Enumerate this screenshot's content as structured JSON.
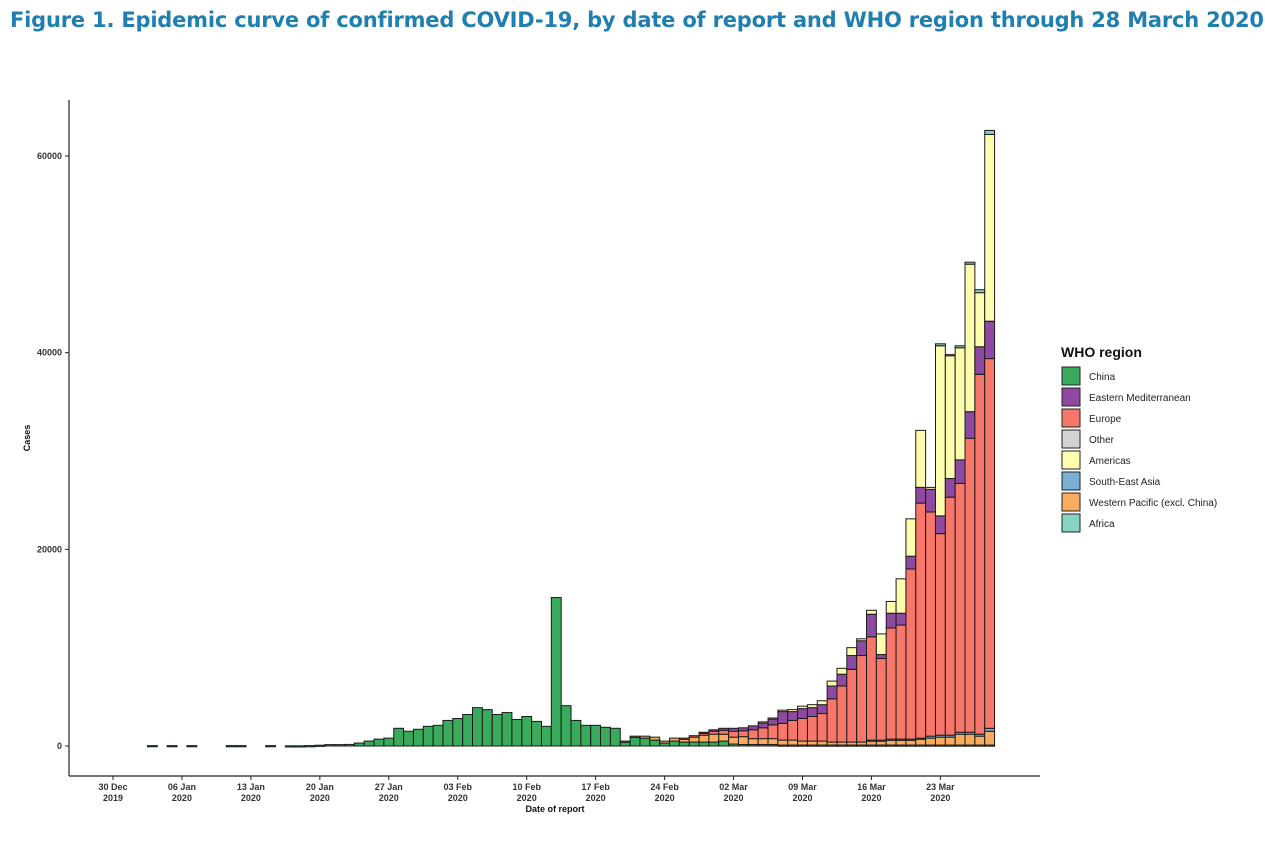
{
  "title": "Figure 1. Epidemic curve of confirmed COVID-19, by date of report and WHO region through 28 March 2020",
  "chart_data": {
    "type": "bar",
    "stacked": true,
    "xlabel": "Date of report",
    "ylabel": "Cases",
    "ylim": [
      0,
      63000
    ],
    "y_ticks": [
      0,
      20000,
      40000,
      60000
    ],
    "y_tick_labels": [
      "0",
      "20000",
      "40000",
      "60000"
    ],
    "grid": false,
    "x_ticks": [
      {
        "date": "2019-12-30",
        "line1": "30 Dec",
        "line2": "2019"
      },
      {
        "date": "2020-01-06",
        "line1": "06 Jan",
        "line2": "2020"
      },
      {
        "date": "2020-01-13",
        "line1": "13 Jan",
        "line2": "2020"
      },
      {
        "date": "2020-01-20",
        "line1": "20 Jan",
        "line2": "2020"
      },
      {
        "date": "2020-01-27",
        "line1": "27 Jan",
        "line2": "2020"
      },
      {
        "date": "2020-02-03",
        "line1": "03 Feb",
        "line2": "2020"
      },
      {
        "date": "2020-02-10",
        "line1": "10 Feb",
        "line2": "2020"
      },
      {
        "date": "2020-02-17",
        "line1": "17 Feb",
        "line2": "2020"
      },
      {
        "date": "2020-02-24",
        "line1": "24 Feb",
        "line2": "2020"
      },
      {
        "date": "2020-03-02",
        "line1": "02 Mar",
        "line2": "2020"
      },
      {
        "date": "2020-03-09",
        "line1": "09 Mar",
        "line2": "2020"
      },
      {
        "date": "2020-03-16",
        "line1": "16 Mar",
        "line2": "2020"
      },
      {
        "date": "2020-03-23",
        "line1": "23 Mar",
        "line2": "2020"
      }
    ],
    "legend": {
      "title": "WHO region",
      "placement": "right"
    },
    "series": [
      {
        "name": "China",
        "color": "#3aaa5c"
      },
      {
        "name": "Eastern Mediterranean",
        "color": "#8e4aa0"
      },
      {
        "name": "Europe",
        "color": "#f7776b"
      },
      {
        "name": "Other",
        "color": "#d3d3d3"
      },
      {
        "name": "Americas",
        "color": "#fdfdb0"
      },
      {
        "name": "South-East Asia",
        "color": "#7bafd4"
      },
      {
        "name": "Western Pacific (excl. China)",
        "color": "#f9ac60"
      },
      {
        "name": "Africa",
        "color": "#87d4c4"
      }
    ],
    "stack_order": [
      "China",
      "Western Pacific (excl. China)",
      "South-East Asia",
      "Europe",
      "Eastern Mediterranean",
      "Americas",
      "Other",
      "Africa"
    ],
    "bars": [
      {
        "date": "2020-01-03",
        "values": {
          "China": 40
        }
      },
      {
        "date": "2020-01-05",
        "values": {
          "China": 40
        }
      },
      {
        "date": "2020-01-07",
        "values": {
          "China": 40
        }
      },
      {
        "date": "2020-01-11",
        "values": {
          "China": 40
        }
      },
      {
        "date": "2020-01-12",
        "values": {
          "China": 40
        }
      },
      {
        "date": "2020-01-15",
        "values": {
          "China": 40
        }
      },
      {
        "date": "2020-01-17",
        "values": {
          "China": 20
        }
      },
      {
        "date": "2020-01-18",
        "values": {
          "China": 20
        }
      },
      {
        "date": "2020-01-19",
        "values": {
          "China": 40
        }
      },
      {
        "date": "2020-01-20",
        "values": {
          "China": 80
        }
      },
      {
        "date": "2020-01-21",
        "values": {
          "China": 140
        }
      },
      {
        "date": "2020-01-22",
        "values": {
          "China": 140
        }
      },
      {
        "date": "2020-01-23",
        "values": {
          "China": 160
        }
      },
      {
        "date": "2020-01-24",
        "values": {
          "China": 300
        }
      },
      {
        "date": "2020-01-25",
        "values": {
          "China": 500
        }
      },
      {
        "date": "2020-01-26",
        "values": {
          "China": 700
        }
      },
      {
        "date": "2020-01-27",
        "values": {
          "China": 800
        }
      },
      {
        "date": "2020-01-28",
        "values": {
          "China": 1800
        }
      },
      {
        "date": "2020-01-29",
        "values": {
          "China": 1500
        }
      },
      {
        "date": "2020-01-30",
        "values": {
          "China": 1700
        }
      },
      {
        "date": "2020-01-31",
        "values": {
          "China": 2000
        }
      },
      {
        "date": "2020-02-01",
        "values": {
          "China": 2100
        }
      },
      {
        "date": "2020-02-02",
        "values": {
          "China": 2600
        }
      },
      {
        "date": "2020-02-03",
        "values": {
          "China": 2800
        }
      },
      {
        "date": "2020-02-04",
        "values": {
          "China": 3200
        }
      },
      {
        "date": "2020-02-05",
        "values": {
          "China": 3900
        }
      },
      {
        "date": "2020-02-06",
        "values": {
          "China": 3700
        }
      },
      {
        "date": "2020-02-07",
        "values": {
          "China": 3200
        }
      },
      {
        "date": "2020-02-08",
        "values": {
          "China": 3400
        }
      },
      {
        "date": "2020-02-09",
        "values": {
          "China": 2700
        }
      },
      {
        "date": "2020-02-10",
        "values": {
          "China": 3000
        }
      },
      {
        "date": "2020-02-11",
        "values": {
          "China": 2500
        }
      },
      {
        "date": "2020-02-12",
        "values": {
          "China": 2000
        }
      },
      {
        "date": "2020-02-13",
        "values": {
          "China": 15100
        }
      },
      {
        "date": "2020-02-14",
        "values": {
          "China": 4100
        }
      },
      {
        "date": "2020-02-15",
        "values": {
          "China": 2600
        }
      },
      {
        "date": "2020-02-16",
        "values": {
          "China": 2100
        }
      },
      {
        "date": "2020-02-17",
        "values": {
          "China": 2100
        }
      },
      {
        "date": "2020-02-18",
        "values": {
          "China": 1900
        }
      },
      {
        "date": "2020-02-19",
        "values": {
          "China": 1800
        }
      },
      {
        "date": "2020-02-20",
        "values": {
          "China": 400,
          "Western Pacific (excl. China)": 100
        }
      },
      {
        "date": "2020-02-21",
        "values": {
          "China": 900,
          "Western Pacific (excl. China)": 100
        }
      },
      {
        "date": "2020-02-22",
        "values": {
          "China": 800,
          "Western Pacific (excl. China)": 200
        }
      },
      {
        "date": "2020-02-23",
        "values": {
          "China": 600,
          "Western Pacific (excl. China)": 300
        }
      },
      {
        "date": "2020-02-24",
        "values": {
          "China": 300,
          "Western Pacific (excl. China)": 200
        }
      },
      {
        "date": "2020-02-25",
        "values": {
          "China": 500,
          "Western Pacific (excl. China)": 300
        }
      },
      {
        "date": "2020-02-26",
        "values": {
          "China": 400,
          "Western Pacific (excl. China)": 300,
          "Europe": 100
        }
      },
      {
        "date": "2020-02-27",
        "values": {
          "China": 400,
          "Western Pacific (excl. China)": 500,
          "Europe": 150
        }
      },
      {
        "date": "2020-02-28",
        "values": {
          "China": 400,
          "Western Pacific (excl. China)": 700,
          "Europe": 200,
          "Eastern Mediterranean": 100
        }
      },
      {
        "date": "2020-02-29",
        "values": {
          "China": 400,
          "Western Pacific (excl. China)": 800,
          "Europe": 300,
          "Eastern Mediterranean": 150
        }
      },
      {
        "date": "2020-03-01",
        "values": {
          "China": 500,
          "Western Pacific (excl. China)": 700,
          "Europe": 400,
          "Eastern Mediterranean": 200
        }
      },
      {
        "date": "2020-03-02",
        "values": {
          "China": 200,
          "Western Pacific (excl. China)": 700,
          "Europe": 600,
          "Eastern Mediterranean": 300
        }
      },
      {
        "date": "2020-03-03",
        "values": {
          "China": 150,
          "Western Pacific (excl. China)": 800,
          "Europe": 600,
          "Eastern Mediterranean": 300
        }
      },
      {
        "date": "2020-03-04",
        "values": {
          "China": 150,
          "Western Pacific (excl. China)": 600,
          "Europe": 900,
          "Eastern Mediterranean": 400
        }
      },
      {
        "date": "2020-03-05",
        "values": {
          "China": 150,
          "Western Pacific (excl. China)": 600,
          "Europe": 1100,
          "Eastern Mediterranean": 500,
          "Americas": 100
        }
      },
      {
        "date": "2020-03-06",
        "values": {
          "China": 150,
          "Western Pacific (excl. China)": 600,
          "Europe": 1400,
          "Eastern Mediterranean": 600,
          "Americas": 100
        }
      },
      {
        "date": "2020-03-07",
        "values": {
          "China": 100,
          "Western Pacific (excl. China)": 500,
          "Europe": 1700,
          "Eastern Mediterranean": 1200,
          "Americas": 150
        }
      },
      {
        "date": "2020-03-08",
        "values": {
          "China": 100,
          "Western Pacific (excl. China)": 500,
          "Europe": 2000,
          "Eastern Mediterranean": 900,
          "Americas": 200
        }
      },
      {
        "date": "2020-03-09",
        "values": {
          "China": 100,
          "Western Pacific (excl. China)": 400,
          "Europe": 2300,
          "Eastern Mediterranean": 1000,
          "Americas": 250
        }
      },
      {
        "date": "2020-03-10",
        "values": {
          "China": 100,
          "Western Pacific (excl. China)": 400,
          "Europe": 2500,
          "Eastern Mediterranean": 900,
          "Americas": 300
        }
      },
      {
        "date": "2020-03-11",
        "values": {
          "China": 100,
          "Western Pacific (excl. China)": 400,
          "Europe": 2800,
          "Eastern Mediterranean": 900,
          "Americas": 400
        }
      },
      {
        "date": "2020-03-12",
        "values": {
          "China": 100,
          "Western Pacific (excl. China)": 300,
          "Europe": 4400,
          "Eastern Mediterranean": 1300,
          "Americas": 500
        }
      },
      {
        "date": "2020-03-13",
        "values": {
          "China": 100,
          "Western Pacific (excl. China)": 300,
          "Europe": 5700,
          "Eastern Mediterranean": 1200,
          "Americas": 600
        }
      },
      {
        "date": "2020-03-14",
        "values": {
          "China": 100,
          "Western Pacific (excl. China)": 300,
          "Europe": 7400,
          "Eastern Mediterranean": 1400,
          "Americas": 800
        }
      },
      {
        "date": "2020-03-15",
        "values": {
          "China": 100,
          "Western Pacific (excl. China)": 300,
          "Europe": 8800,
          "Eastern Mediterranean": 1500,
          "Americas": 200
        }
      },
      {
        "date": "2020-03-16",
        "values": {
          "China": 100,
          "Western Pacific (excl. China)": 400,
          "Europe": 10500,
          "Eastern Mediterranean": 2300,
          "Americas": 400,
          "South-East Asia": 100
        }
      },
      {
        "date": "2020-03-17",
        "values": {
          "China": 100,
          "Western Pacific (excl. China)": 400,
          "Europe": 8300,
          "Eastern Mediterranean": 400,
          "Americas": 2100,
          "South-East Asia": 100
        }
      },
      {
        "date": "2020-03-18",
        "values": {
          "China": 100,
          "Western Pacific (excl. China)": 500,
          "Europe": 11300,
          "Eastern Mediterranean": 1500,
          "Americas": 1200,
          "South-East Asia": 100
        }
      },
      {
        "date": "2020-03-19",
        "values": {
          "China": 100,
          "Western Pacific (excl. China)": 500,
          "Europe": 11600,
          "Eastern Mediterranean": 1200,
          "Americas": 3500,
          "South-East Asia": 100
        }
      },
      {
        "date": "2020-03-20",
        "values": {
          "China": 100,
          "Western Pacific (excl. China)": 500,
          "Europe": 17300,
          "Eastern Mediterranean": 1300,
          "Americas": 3800,
          "South-East Asia": 100
        }
      },
      {
        "date": "2020-03-21",
        "values": {
          "China": 100,
          "Western Pacific (excl. China)": 600,
          "Europe": 23900,
          "Eastern Mediterranean": 1600,
          "Americas": 5800,
          "South-East Asia": 100
        }
      },
      {
        "date": "2020-03-22",
        "values": {
          "China": 100,
          "Western Pacific (excl. China)": 700,
          "Europe": 22800,
          "Eastern Mediterranean": 2300,
          "Americas": 200,
          "South-East Asia": 200
        }
      },
      {
        "date": "2020-03-23",
        "values": {
          "China": 100,
          "Western Pacific (excl. China)": 800,
          "Europe": 20500,
          "Eastern Mediterranean": 1800,
          "Americas": 17300,
          "South-East Asia": 200,
          "Africa": 200
        }
      },
      {
        "date": "2020-03-24",
        "values": {
          "China": 100,
          "Western Pacific (excl. China)": 800,
          "Europe": 24200,
          "Eastern Mediterranean": 1900,
          "Americas": 12500,
          "South-East Asia": 200,
          "Africa": 100
        }
      },
      {
        "date": "2020-03-25",
        "values": {
          "China": 100,
          "Western Pacific (excl. China)": 1100,
          "Europe": 25300,
          "Eastern Mediterranean": 2400,
          "Americas": 11400,
          "South-East Asia": 200,
          "Africa": 200
        }
      },
      {
        "date": "2020-03-26",
        "values": {
          "China": 100,
          "Western Pacific (excl. China)": 1100,
          "Europe": 29900,
          "Eastern Mediterranean": 2700,
          "Americas": 15000,
          "South-East Asia": 200,
          "Africa": 200
        }
      },
      {
        "date": "2020-03-27",
        "values": {
          "China": 100,
          "Western Pacific (excl. China)": 900,
          "Europe": 36600,
          "Eastern Mediterranean": 2800,
          "Americas": 5500,
          "South-East Asia": 200,
          "Africa": 300
        }
      },
      {
        "date": "2020-03-28",
        "values": {
          "China": 100,
          "Western Pacific (excl. China)": 1400,
          "Europe": 37600,
          "Eastern Mediterranean": 3800,
          "Americas": 19000,
          "South-East Asia": 300,
          "Africa": 400
        }
      }
    ]
  }
}
